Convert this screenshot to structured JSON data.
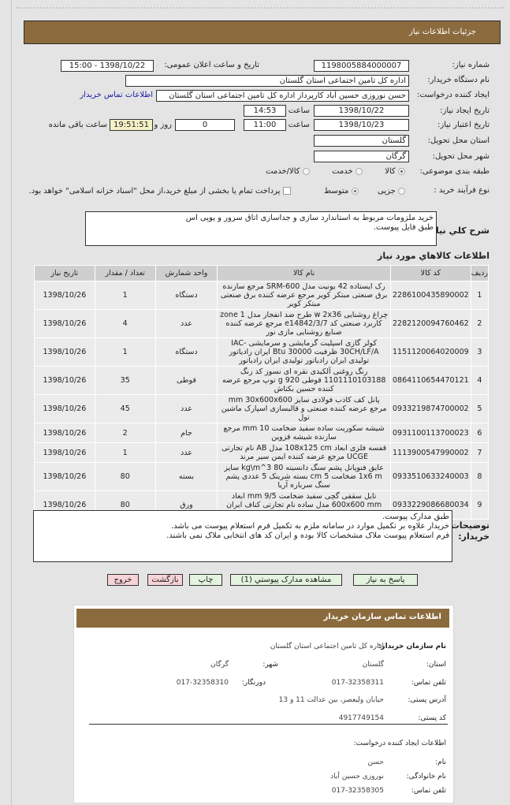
{
  "header": {
    "title": "جزئیات اطلاعات نیاز"
  },
  "form": {
    "need_number_label": "شماره نیاز:",
    "need_number": "1198005884000007",
    "announce_label": "تاریخ و ساعت اعلان عمومی:",
    "announce_value": "1398/10/22 - 15:00",
    "buyer_org_label": "نام دستگاه خریدار:",
    "buyer_org": "اداره کل تامین اجتماعی استان گلستان",
    "creator_label": "ایجاد کننده درخواست:",
    "creator": "حسن نوروزی حسین آباد کارپرداز اداره کل تامین اجتماعی استان گلستان",
    "contact_link": "اطلاعات تماس خریدار",
    "created_date_label": "تاریخ ایجاد نیاز:",
    "created_date": "1398/10/22",
    "time_label": "ساعت",
    "created_time": "14:53",
    "valid_date_label": "تاریخ اعتبار نیاز:",
    "valid_date": "1398/10/23",
    "valid_time": "11:00",
    "days_left": "0",
    "days_label": "روز و",
    "time_left": "19:51:51",
    "time_left_label": "ساعت باقی مانده",
    "province_label": "استان محل تحویل:",
    "province": "گلستان",
    "city_label": "شهر محل تحویل:",
    "city": "گرگان",
    "category_label": "طبقه بندی موضوعی:",
    "category_options": [
      "کالا",
      "خدمت",
      "کالا/خدمت"
    ],
    "category_selected": "کالا",
    "process_label": "نوع فرآیند خرید :",
    "process_options": [
      "جزیی",
      "متوسط"
    ],
    "process_selected": "متوسط",
    "payment_note": "پرداخت تمام یا بخشی از مبلغ خرید،از محل \"اسناد خزانه اسلامی\" خواهد بود.",
    "payment_checked": false
  },
  "description": {
    "label": "شرح کلي نياز:",
    "line1": "خرید ملزومات مربوط به استاندارد سازی و جداسازی  اتاق سرور و یوپی اس",
    "line2": "طبق فایل پیوست."
  },
  "items": {
    "title": "اطلاعات کالاهاي مورد نياز",
    "columns": [
      "ردیف",
      "کد کالا",
      "نام کالا",
      "واحد شمارش",
      "تعداد / مقدار",
      "تاریخ نیاز"
    ],
    "rows": [
      [
        "1",
        "2286100435890002",
        "رک ایستاده 42 یونیت مدل SRM-600 مرجع سازنده برق صنعتی مبتکر کویر مرجع عرضه کننده برق صنعتی مبتکر کویر",
        "دستگاه",
        "1",
        "1398/10/26"
      ],
      [
        "2",
        "2282120094760462",
        "چراغ روشنایی w 2x36 طرح ضد انفجار مدل zone 1 کاربرد صنعتی کد e14842/3/7 مرجع عرضه کننده صنایع روشنایی مازی نور",
        "عدد",
        "4",
        "1398/10/26"
      ],
      [
        "3",
        "1151120064020009",
        "کولر گازی اسپلیت گرمایشی و سرمایشی IAC-30CH/LF/A ظرفیت Btu 30000 ایران رادیاتور تولیدی ایران رادیاتور تولیدی ایران رادیاتور",
        "دستگاه",
        "1",
        "1398/10/26"
      ],
      [
        "4",
        "0864110654470121",
        "رنگ روغنی آلکیدی نقره ای نسوز کد رنگ 1101110103188 قوطی g 920 توپ مرجع عرضه کننده حسین بکتاش",
        "قوطی",
        "35",
        "1398/10/26"
      ],
      [
        "5",
        "0933219874700002",
        "پانل کف کاذب فولادی سایز mm 30x600x600 مرجع عرضه کننده صنعتی و قالبسازی اسپارک ماشین تول",
        "عدد",
        "45",
        "1398/10/26"
      ],
      [
        "6",
        "0931100113700023",
        "شیشه سکوریت ساده سفید ضخامت mm 10 مرجع سازنده شیشه قزوین",
        "جام",
        "2",
        "1398/10/26"
      ],
      [
        "7",
        "1113900547990002",
        "قفسه فلزی ابعاد 108x125 cm مدل AB نام تجارتی UCGE مرجع عرضه کننده ایمن سیر مرند",
        "عدد",
        "1",
        "1398/10/26"
      ],
      [
        "8",
        "0933510633240003",
        "عایق فنوپانل پشم سنگ دانسیته 80 kg\\m^3 سایز 1x6 m ضخامت 5 cm بسته شرینک 5 عددی پشم سنگ سرباره آریا",
        "بسته",
        "80",
        "1398/10/26"
      ],
      [
        "9",
        "0933229086680034",
        "تایل سقفی گچی سفید ضخامت 9/5 mm ابعاد 600x600 mm مدل ساده نام تجارتی کناف ایران کشور سازنده ایران",
        "ورق",
        "80",
        "1398/10/26"
      ]
    ]
  },
  "buyer_notes": {
    "label": "توضیحات خریدار:",
    "line1": "طبق مدارک پیوست.",
    "line2": "خریدار علاوه بر تکمیل موارد در سامانه ملزم به تکمیل فرم استعلام پیوست می باشد.",
    "line3": "فرم استعلام پیوست ملاک مشخصات کالا بوده و ایران کد های انتخابی ملاک نمی باشند."
  },
  "buttons": {
    "reply": "پاسخ به نیاز",
    "attachments": "مشاهده مدارک پیوستي (1)",
    "print": "چاپ",
    "back": "بازگشت",
    "exit": "خروج"
  },
  "contact": {
    "title": "اطلاعات تماس سازمان خریدار",
    "org_label": "نام سازمان خریدار:",
    "org": "اداره کل تامین اجتماعی استان گلستان",
    "province_label": "استان:",
    "province": "گلستان",
    "city_label": "شهر:",
    "city": "گرگان",
    "phone_label": "تلفن تماس:",
    "phone": "017-32358311",
    "fax_label": "دورنگار:",
    "fax": "017-32358310",
    "address_label": "آدرس پستی:",
    "address": "خیابان ولیعصر، بین عدالت 11 و 13",
    "postal_label": "کد پستی:",
    "postal": "4917749154",
    "creator_title": "اطلاعات ایجاد کننده درخواست:",
    "first_name_label": "نام:",
    "first_name": "حسن",
    "last_name_label": "نام خانوادگی:",
    "last_name": "نوروزی حسین آباد",
    "creator_phone_label": "تلفن تماس:",
    "creator_phone": "017-32358305"
  }
}
